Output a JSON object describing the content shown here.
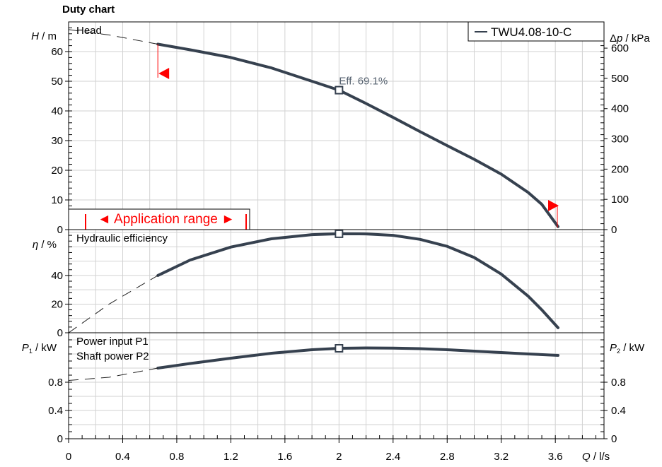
{
  "title": "Duty chart",
  "legend": {
    "series_name": "TWU4.08-10-C"
  },
  "colors": {
    "curve": "#36414f",
    "grid": "#d2d2d2",
    "frame": "#000000",
    "range": "#ff0000",
    "annotation": "#566270"
  },
  "chart_data": [
    {
      "panel": "head",
      "type": "line",
      "panel_label": "Head",
      "ylabel_left": "H / m",
      "ylabel_right": "Δp / kPa",
      "ylim": [
        0,
        70
      ],
      "yticks_left": [
        0,
        10,
        20,
        30,
        40,
        50,
        60
      ],
      "ylim_right": [
        0,
        686.7
      ],
      "yticks_right": [
        0,
        100,
        200,
        300,
        400,
        500,
        600
      ],
      "grid": true,
      "series": [
        {
          "name": "TWU4.08-10-C",
          "style": "solid",
          "x": [
            0.66,
            0.9,
            1.2,
            1.5,
            1.8,
            2.0,
            2.2,
            2.4,
            2.6,
            2.8,
            3.0,
            3.2,
            3.4,
            3.5,
            3.62
          ],
          "y": [
            62.5,
            60.6,
            58.0,
            54.5,
            50.0,
            47.0,
            42.5,
            37.8,
            33.0,
            28.3,
            23.7,
            18.7,
            12.5,
            8.5,
            1.0
          ]
        },
        {
          "name": "",
          "style": "dashed",
          "x": [
            0.0,
            0.3,
            0.66
          ],
          "y": [
            67.4,
            65.6,
            62.5
          ]
        }
      ],
      "operating_point": {
        "x": 2.0,
        "y": 47.0,
        "label": "Eff.  69.1%"
      },
      "application_range": {
        "label": "◄ Application range ►",
        "q_min": 0.66,
        "q_max": 3.62
      }
    },
    {
      "panel": "efficiency",
      "type": "line",
      "panel_label": "Hydraulic efficiency",
      "ylabel_left": "η / %",
      "ylim": [
        0,
        72
      ],
      "yticks_left": [
        0,
        20,
        40
      ],
      "grid": true,
      "series": [
        {
          "name": "",
          "style": "solid",
          "x": [
            0.66,
            0.9,
            1.2,
            1.5,
            1.8,
            2.0,
            2.2,
            2.4,
            2.6,
            2.8,
            3.0,
            3.2,
            3.4,
            3.5,
            3.62
          ],
          "y": [
            40.0,
            50.8,
            59.8,
            65.6,
            68.5,
            69.1,
            69.0,
            68.0,
            65.2,
            60.3,
            52.5,
            41.0,
            25.5,
            16.0,
            3.5
          ]
        },
        {
          "name": "",
          "style": "dashed",
          "x": [
            0.0,
            0.3,
            0.66
          ],
          "y": [
            0.0,
            20.0,
            40.0
          ]
        }
      ],
      "operating_point": {
        "x": 2.0,
        "y": 69.1
      }
    },
    {
      "panel": "power",
      "type": "line",
      "panel_label_1": "Power input P1",
      "panel_label_2": "Shaft power P2",
      "ylabel_left": "P1 / kW",
      "ylabel_right": "P2 / kW",
      "ylim": [
        0,
        1.5
      ],
      "yticks_left": [
        0,
        0.4,
        0.8
      ],
      "yticks_right": [
        0,
        0.4,
        0.8
      ],
      "grid": true,
      "series": [
        {
          "name": "",
          "style": "solid",
          "x": [
            0.66,
            0.9,
            1.2,
            1.5,
            1.8,
            2.0,
            2.2,
            2.4,
            2.6,
            2.8,
            3.0,
            3.2,
            3.4,
            3.62
          ],
          "y": [
            1.0,
            1.065,
            1.14,
            1.21,
            1.26,
            1.28,
            1.285,
            1.283,
            1.275,
            1.26,
            1.24,
            1.22,
            1.2,
            1.18
          ]
        },
        {
          "name": "",
          "style": "dashed",
          "x": [
            0.0,
            0.3,
            0.66
          ],
          "y": [
            0.825,
            0.87,
            1.0
          ]
        }
      ],
      "operating_point": {
        "x": 2.0,
        "y": 1.28
      }
    }
  ],
  "x_axis": {
    "label": "Q / l/s",
    "xlim": [
      0,
      3.96
    ],
    "ticks": [
      0,
      0.4,
      0.8,
      1.2,
      1.6,
      2,
      2.4,
      2.8,
      3.2,
      3.6
    ],
    "tick_labels": [
      "0",
      "0.4",
      "0.8",
      "1.2",
      "1.6",
      "2",
      "2.4",
      "2.8",
      "3.2",
      "3.6"
    ]
  }
}
